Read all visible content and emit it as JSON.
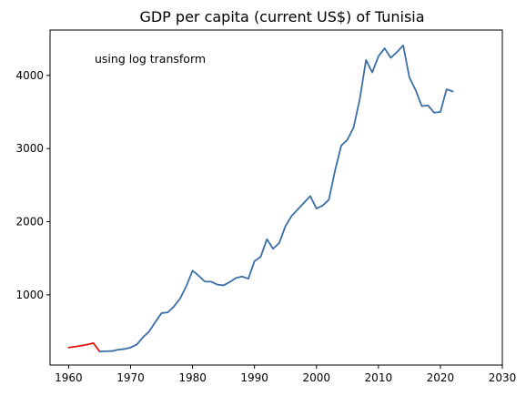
{
  "chart_data": {
    "type": "line",
    "title": "GDP per capita (current US$) of Tunisia",
    "xlabel": "",
    "ylabel": "",
    "annotation": "using log transform",
    "xlim": [
      1957,
      2030
    ],
    "ylim": [
      40,
      4620
    ],
    "xticks": [
      1960,
      1970,
      1980,
      1990,
      2000,
      2010,
      2020,
      2030
    ],
    "yticks": [
      1000,
      2000,
      3000,
      4000
    ],
    "grid": false,
    "series": [
      {
        "color": "#e8120c",
        "points": [
          [
            1960,
            280
          ],
          [
            1961,
            290
          ],
          [
            1962,
            305
          ],
          [
            1963,
            320
          ],
          [
            1964,
            340
          ],
          [
            1965,
            225
          ]
        ]
      },
      {
        "color": "#3a6ea5",
        "points": [
          [
            1965,
            225
          ],
          [
            1966,
            228
          ],
          [
            1967,
            232
          ],
          [
            1968,
            250
          ],
          [
            1969,
            260
          ],
          [
            1970,
            280
          ],
          [
            1971,
            320
          ],
          [
            1972,
            420
          ],
          [
            1973,
            500
          ],
          [
            1974,
            630
          ],
          [
            1975,
            750
          ],
          [
            1976,
            760
          ],
          [
            1977,
            840
          ],
          [
            1978,
            950
          ],
          [
            1979,
            1120
          ],
          [
            1980,
            1330
          ],
          [
            1981,
            1260
          ],
          [
            1982,
            1180
          ],
          [
            1983,
            1180
          ],
          [
            1984,
            1140
          ],
          [
            1985,
            1130
          ],
          [
            1986,
            1175
          ],
          [
            1987,
            1230
          ],
          [
            1988,
            1250
          ],
          [
            1989,
            1220
          ],
          [
            1990,
            1460
          ],
          [
            1991,
            1520
          ],
          [
            1992,
            1760
          ],
          [
            1993,
            1630
          ],
          [
            1994,
            1710
          ],
          [
            1995,
            1940
          ],
          [
            1996,
            2080
          ],
          [
            1997,
            2170
          ],
          [
            1998,
            2260
          ],
          [
            1999,
            2350
          ],
          [
            2000,
            2180
          ],
          [
            2001,
            2220
          ],
          [
            2002,
            2300
          ],
          [
            2003,
            2700
          ],
          [
            2004,
            3040
          ],
          [
            2005,
            3120
          ],
          [
            2006,
            3290
          ],
          [
            2007,
            3680
          ],
          [
            2008,
            4210
          ],
          [
            2009,
            4040
          ],
          [
            2010,
            4260
          ],
          [
            2011,
            4370
          ],
          [
            2012,
            4240
          ],
          [
            2013,
            4320
          ],
          [
            2014,
            4410
          ],
          [
            2015,
            3970
          ],
          [
            2016,
            3800
          ],
          [
            2017,
            3580
          ],
          [
            2018,
            3590
          ],
          [
            2019,
            3490
          ],
          [
            2020,
            3500
          ],
          [
            2021,
            3810
          ],
          [
            2022,
            3780
          ]
        ]
      }
    ]
  }
}
